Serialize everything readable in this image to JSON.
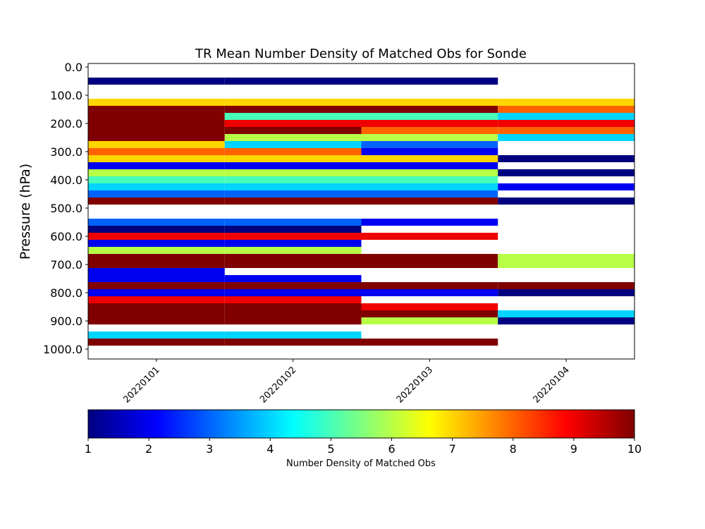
{
  "chart_data": {
    "type": "heatmap",
    "title": "TR Mean Number Density of Matched Obs for Sonde",
    "ylabel": "Pressure (hPa)",
    "xlabel": "",
    "categories": [
      "20220101",
      "20220102",
      "20220103",
      "20220104"
    ],
    "y_tick_values": [
      0,
      100,
      200,
      300,
      400,
      500,
      600,
      700,
      800,
      900,
      1000
    ],
    "y_tick_labels": [
      "0.0",
      "100.0",
      "200.0",
      "300.0",
      "400.0",
      "500.0",
      "600.0",
      "700.0",
      "800.0",
      "900.0",
      "1000.0"
    ],
    "ylim": [
      1035,
      -12.5
    ],
    "level_step": 25,
    "colormap": "jet",
    "colorbar": {
      "label": "Number Density of Matched Obs",
      "min": 1,
      "max": 10,
      "tick_values": [
        1,
        2,
        3,
        4,
        5,
        6,
        7,
        8,
        9,
        10
      ],
      "tick_labels": [
        "1",
        "2",
        "3",
        "4",
        "5",
        "6",
        "7",
        "8",
        "9",
        "10"
      ]
    },
    "grid": false,
    "columns": [
      {
        "date": "20220101",
        "values": [
          [
            50,
            1
          ],
          [
            125,
            7
          ],
          [
            150,
            10
          ],
          [
            175,
            10
          ],
          [
            200,
            10
          ],
          [
            225,
            10
          ],
          [
            250,
            10
          ],
          [
            275,
            7
          ],
          [
            300,
            8
          ],
          [
            325,
            7
          ],
          [
            350,
            2
          ],
          [
            375,
            6
          ],
          [
            400,
            5
          ],
          [
            425,
            4
          ],
          [
            450,
            3
          ],
          [
            475,
            10
          ],
          [
            550,
            3
          ],
          [
            575,
            1
          ],
          [
            600,
            9
          ],
          [
            625,
            2
          ],
          [
            650,
            6
          ],
          [
            675,
            10
          ],
          [
            700,
            10
          ],
          [
            725,
            2
          ],
          [
            750,
            2
          ],
          [
            775,
            10
          ],
          [
            800,
            2
          ],
          [
            825,
            9
          ],
          [
            850,
            10
          ],
          [
            875,
            10
          ],
          [
            900,
            10
          ],
          [
            950,
            4
          ],
          [
            975,
            10
          ]
        ]
      },
      {
        "date": "20220102",
        "values": [
          [
            50,
            1
          ],
          [
            125,
            7
          ],
          [
            150,
            10
          ],
          [
            175,
            5
          ],
          [
            200,
            9
          ],
          [
            225,
            10
          ],
          [
            250,
            6
          ],
          [
            275,
            4
          ],
          [
            300,
            8
          ],
          [
            325,
            7
          ],
          [
            350,
            2
          ],
          [
            375,
            6
          ],
          [
            400,
            5
          ],
          [
            425,
            4
          ],
          [
            450,
            3
          ],
          [
            475,
            10
          ],
          [
            550,
            3
          ],
          [
            575,
            1
          ],
          [
            600,
            9
          ],
          [
            625,
            2
          ],
          [
            650,
            6
          ],
          [
            675,
            10
          ],
          [
            700,
            10
          ],
          [
            750,
            2
          ],
          [
            775,
            10
          ],
          [
            800,
            2
          ],
          [
            825,
            9
          ],
          [
            850,
            10
          ],
          [
            875,
            10
          ],
          [
            900,
            10
          ],
          [
            950,
            4
          ],
          [
            975,
            10
          ]
        ]
      },
      {
        "date": "20220103",
        "values": [
          [
            50,
            1
          ],
          [
            125,
            7
          ],
          [
            150,
            10
          ],
          [
            175,
            5
          ],
          [
            200,
            9
          ],
          [
            225,
            8
          ],
          [
            250,
            6
          ],
          [
            275,
            3
          ],
          [
            300,
            2
          ],
          [
            325,
            7
          ],
          [
            350,
            2
          ],
          [
            375,
            6
          ],
          [
            400,
            5
          ],
          [
            425,
            4
          ],
          [
            450,
            3
          ],
          [
            475,
            10
          ],
          [
            550,
            2
          ],
          [
            600,
            9
          ],
          [
            675,
            10
          ],
          [
            700,
            10
          ],
          [
            775,
            10
          ],
          [
            800,
            2
          ],
          [
            850,
            9
          ],
          [
            875,
            10
          ],
          [
            900,
            6
          ],
          [
            975,
            10
          ]
        ]
      },
      {
        "date": "20220104",
        "values": [
          [
            125,
            7
          ],
          [
            150,
            8
          ],
          [
            175,
            4
          ],
          [
            200,
            9
          ],
          [
            225,
            8
          ],
          [
            250,
            4
          ],
          [
            325,
            1
          ],
          [
            375,
            1
          ],
          [
            425,
            2
          ],
          [
            475,
            1
          ],
          [
            675,
            6
          ],
          [
            700,
            6
          ],
          [
            775,
            10
          ],
          [
            800,
            1
          ],
          [
            875,
            4
          ],
          [
            900,
            1
          ]
        ]
      }
    ]
  }
}
